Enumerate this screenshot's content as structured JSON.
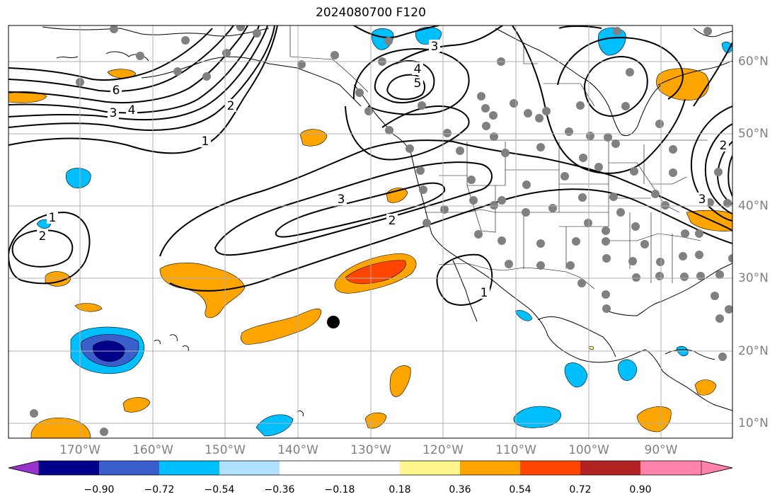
{
  "title": "2024080700 F120",
  "colors": {
    "land_outline": "#000000",
    "grid": "#b0b0b0",
    "contour": "#000000",
    "station_dot": "#808080",
    "marker": "#000000"
  },
  "map": {
    "projection": "PlateCarree",
    "lon_range": [
      -180,
      -80
    ],
    "lat_range": [
      8,
      65
    ],
    "lon_labels": [
      "170°W",
      "160°W",
      "150°W",
      "140°W",
      "130°W",
      "120°W",
      "110°W",
      "100°W",
      "90°W"
    ],
    "lat_labels": [
      "10°N",
      "20°N",
      "30°N",
      "40°N",
      "50°N",
      "60°N"
    ],
    "contour_labels": [
      "1",
      "2",
      "3",
      "4",
      "5",
      "6"
    ],
    "marker": {
      "lon": -134,
      "lat": 24
    }
  },
  "colorbar": {
    "colors": [
      "#9a32cd",
      "#00008b",
      "#3a5fcd",
      "#00bfff",
      "#b0e2ff",
      "#ffffff",
      "#fff68f",
      "#ffa500",
      "#ff4500",
      "#b22222",
      "#ff82ab"
    ],
    "labels": [
      "−0.90",
      "−0.72",
      "−0.54",
      "−0.36",
      "−0.18",
      "0.18",
      "0.36",
      "0.54",
      "0.72",
      "0.90"
    ]
  }
}
